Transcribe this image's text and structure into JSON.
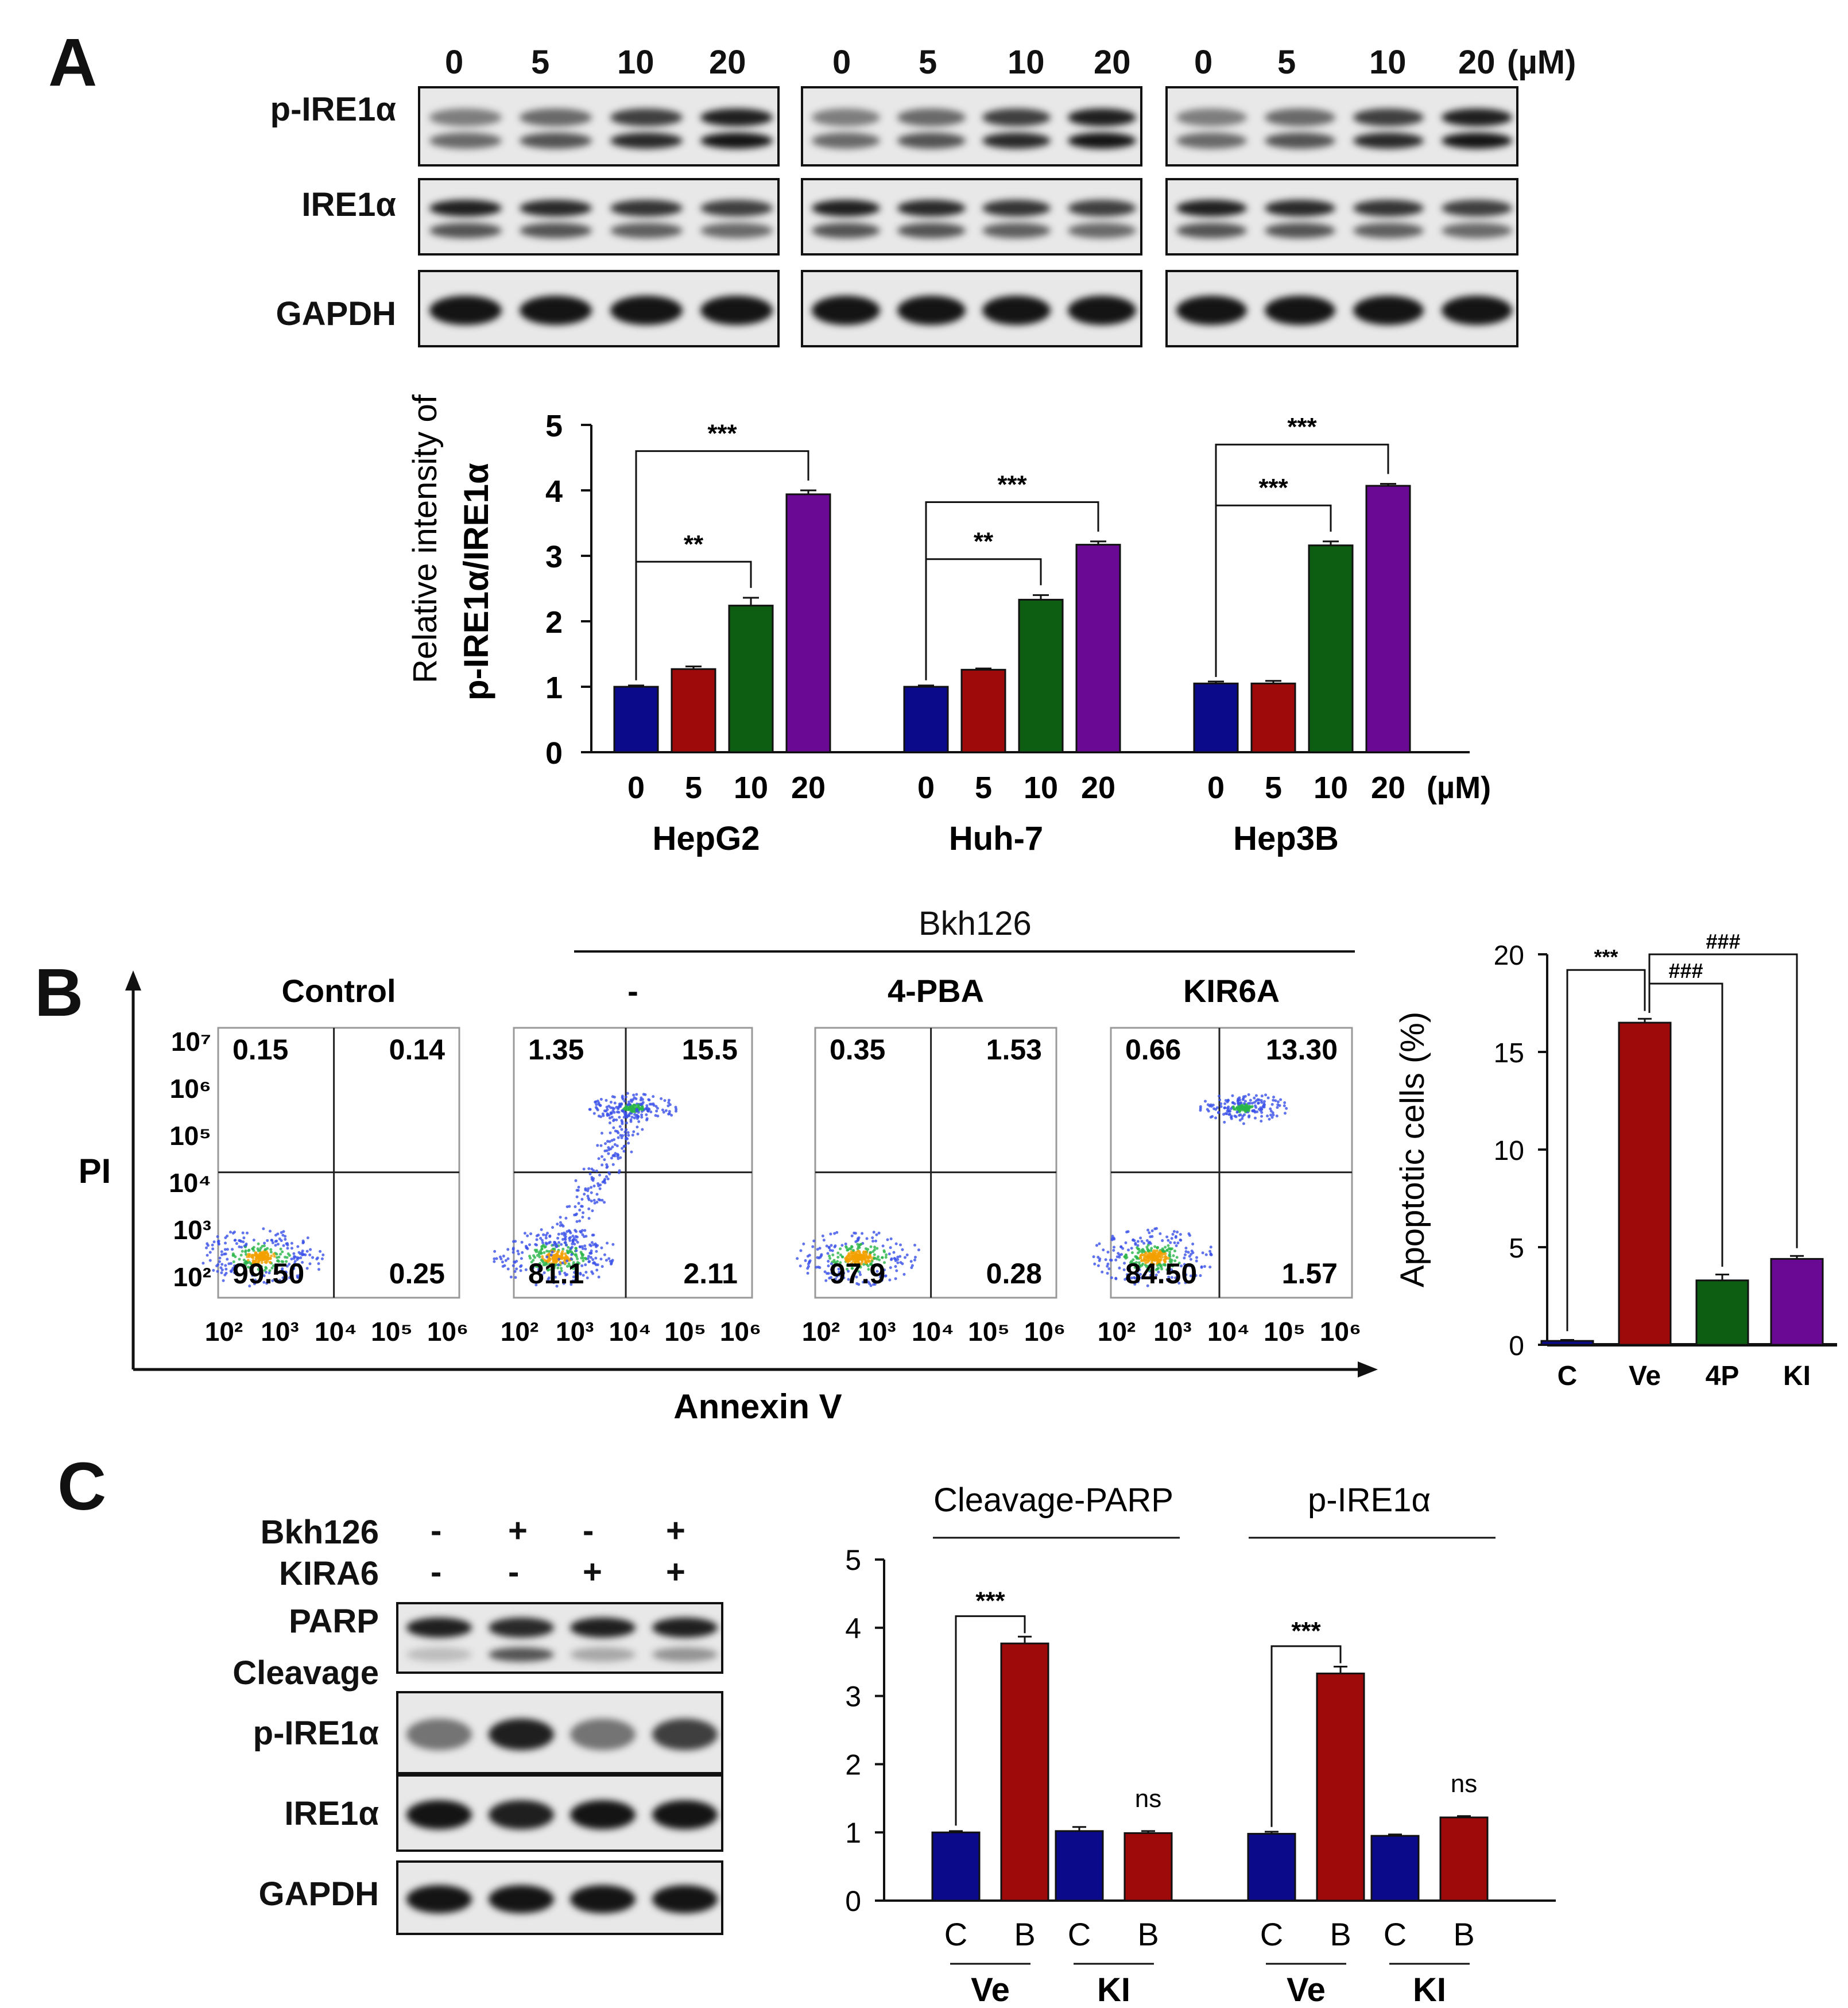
{
  "panelA": {
    "letter": "A",
    "blot_lanes": [
      "0",
      "5",
      "10",
      "20"
    ],
    "blot_unit": "(µM)",
    "blot_rows": [
      "p-IRE1α",
      "IRE1α",
      "GAPDH"
    ],
    "colors": {
      "c0": "#0a0a8a",
      "c5": "#9e0a0a",
      "c10": "#0d5d12",
      "c20": "#6a0a94"
    }
  },
  "panelB": {
    "letter": "B",
    "treatment_header": "Bkh126",
    "y_axis_label": "PI",
    "x_axis_label": "Annexin V",
    "y_ticks": [
      "10⁷",
      "10⁶",
      "10⁵",
      "10⁴",
      "10³",
      "10²"
    ],
    "x_ticks": [
      "10²",
      "10³",
      "10⁴",
      "10⁵",
      "10⁶"
    ],
    "plots": [
      {
        "title": "Control",
        "q_ul": "0.15",
        "q_ur": "0.14",
        "q_ll": "99.50",
        "q_lr": "0.25"
      },
      {
        "title": "-",
        "q_ul": "1.35",
        "q_ur": "15.5",
        "q_ll": "81.1",
        "q_lr": "2.11"
      },
      {
        "title": "4-PBA",
        "q_ul": "0.35",
        "q_ur": "1.53",
        "q_ll": "97.9",
        "q_lr": "0.28"
      },
      {
        "title": "KIR6A",
        "q_ul": "0.66",
        "q_ur": "13.30",
        "q_ll": "84.50",
        "q_lr": "1.57"
      }
    ]
  },
  "panelC": {
    "letter": "C",
    "treatments": [
      {
        "name": "Bkh126",
        "signs": [
          "-",
          "+",
          "-",
          "+"
        ]
      },
      {
        "name": "KIRA6",
        "signs": [
          "-",
          "-",
          "+",
          "+"
        ]
      }
    ],
    "blot_rows": [
      "PARP",
      "Cleavage",
      "p-IRE1α",
      "IRE1α",
      "GAPDH"
    ]
  },
  "chart_data": [
    {
      "id": "A",
      "type": "bar",
      "ylabel_line1": "Relative intensity of",
      "ylabel_line2": "p-IRE1α/IRE1α",
      "ylim": [
        0,
        5
      ],
      "yticks": [
        0,
        1,
        2,
        3,
        4,
        5
      ],
      "unit": "(µM)",
      "groups": [
        {
          "name": "HepG2",
          "categories": [
            "0",
            "5",
            "10",
            "20"
          ],
          "values": [
            1.0,
            1.27,
            2.24,
            3.94
          ],
          "errors": [
            0.02,
            0.04,
            0.12,
            0.06
          ]
        },
        {
          "name": "Huh-7",
          "categories": [
            "0",
            "5",
            "10",
            "20"
          ],
          "values": [
            1.0,
            1.26,
            2.33,
            3.17
          ],
          "errors": [
            0.02,
            0.02,
            0.07,
            0.05
          ]
        },
        {
          "name": "Hep3B",
          "categories": [
            "0",
            "5",
            "10",
            "20"
          ],
          "values": [
            1.05,
            1.05,
            3.16,
            4.07
          ],
          "errors": [
            0.03,
            0.04,
            0.06,
            0.03
          ]
        }
      ],
      "annotations": [
        {
          "group": 0,
          "from": 0,
          "to": 2,
          "label": "**"
        },
        {
          "group": 0,
          "from": 0,
          "to": 3,
          "label": "***"
        },
        {
          "group": 1,
          "from": 0,
          "to": 2,
          "label": "**"
        },
        {
          "group": 1,
          "from": 0,
          "to": 3,
          "label": "***"
        },
        {
          "group": 2,
          "from": 0,
          "to": 2,
          "label": "***"
        },
        {
          "group": 2,
          "from": 0,
          "to": 3,
          "label": "***"
        }
      ]
    },
    {
      "id": "B",
      "type": "bar",
      "ylabel": "Apoptotic cells (%)",
      "ylim": [
        0,
        20
      ],
      "yticks": [
        0,
        5,
        10,
        15,
        20
      ],
      "categories": [
        "C",
        "Ve",
        "4P",
        "KI"
      ],
      "values": [
        0.2,
        16.5,
        3.3,
        4.4
      ],
      "errors": [
        0.05,
        0.2,
        0.3,
        0.15
      ],
      "annotations": [
        {
          "from": 0,
          "to": 1,
          "label": "***"
        },
        {
          "from": 1,
          "to": 2,
          "label": "###"
        },
        {
          "from": 1,
          "to": 3,
          "label": "###"
        }
      ]
    },
    {
      "id": "C",
      "type": "bar",
      "ylim": [
        0,
        5
      ],
      "yticks": [
        0,
        1,
        2,
        3,
        4,
        5
      ],
      "groups": [
        {
          "name": "Cleavage-PARP",
          "subgroups": [
            {
              "name": "Ve",
              "categories": [
                "C",
                "B"
              ],
              "values": [
                1.0,
                3.77
              ],
              "errors": [
                0.02,
                0.1
              ]
            },
            {
              "name": "KI",
              "categories": [
                "C",
                "B"
              ],
              "values": [
                1.02,
                0.99
              ],
              "errors": [
                0.06,
                0.03
              ]
            }
          ]
        },
        {
          "name": "p-IRE1α",
          "subgroups": [
            {
              "name": "Ve",
              "categories": [
                "C",
                "B"
              ],
              "values": [
                0.98,
                3.33
              ],
              "errors": [
                0.03,
                0.1
              ]
            },
            {
              "name": "KI",
              "categories": [
                "C",
                "B"
              ],
              "values": [
                0.95,
                1.22
              ],
              "errors": [
                0.02,
                0.02
              ]
            }
          ]
        }
      ],
      "annotations": [
        {
          "group": 0,
          "label": "***",
          "ns": "ns"
        },
        {
          "group": 1,
          "label": "***",
          "ns": "ns"
        }
      ]
    }
  ]
}
